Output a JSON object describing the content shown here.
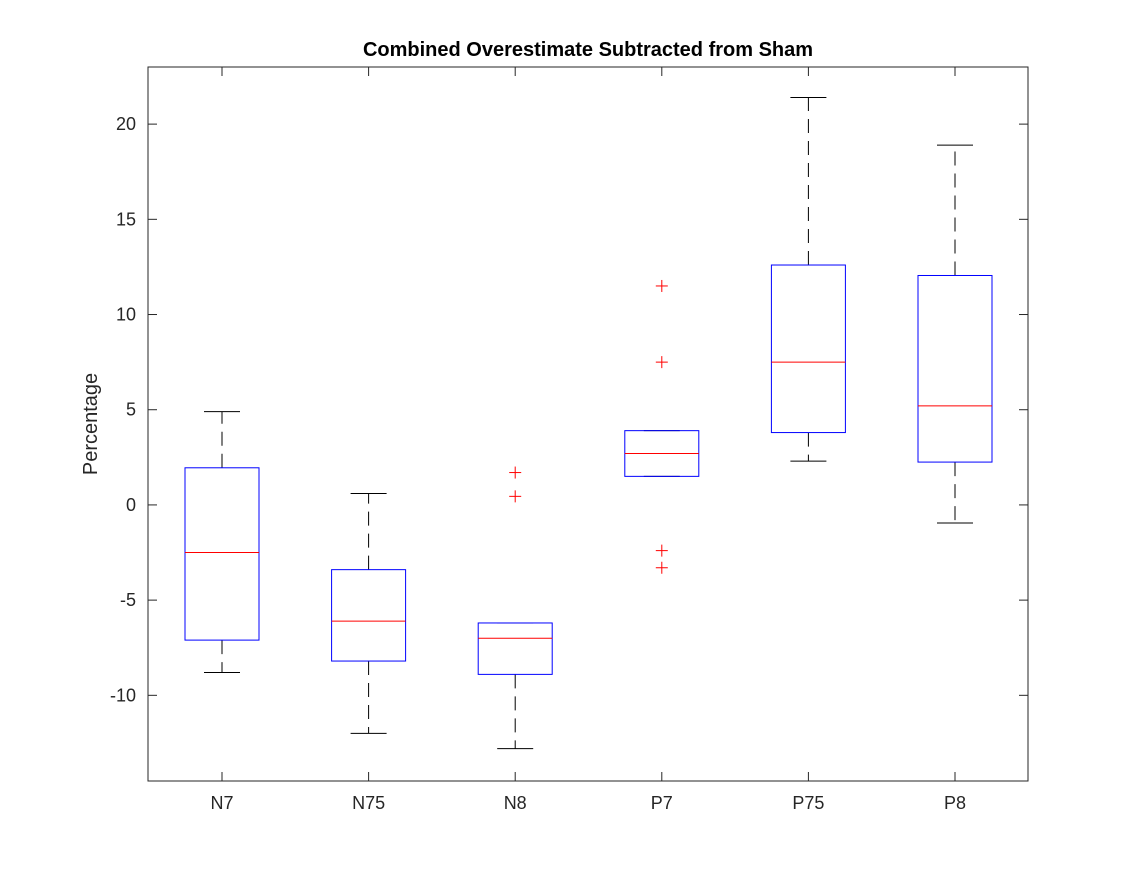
{
  "chart_data": {
    "type": "box",
    "title": "Combined Overestimate Subtracted from Sham",
    "xlabel": "",
    "ylabel": "Percentage",
    "ylim": [
      -14.5,
      23
    ],
    "yticks": [
      -10,
      -5,
      0,
      5,
      10,
      15,
      20
    ],
    "ytick_labels": [
      "-10",
      "-5",
      "0",
      "5",
      "10",
      "15",
      "20"
    ],
    "categories": [
      "N7",
      "N75",
      "N8",
      "P7",
      "P75",
      "P8"
    ],
    "boxes": [
      {
        "label": "N7",
        "whisker_low": -8.8,
        "q1": -7.1,
        "median": -2.5,
        "q3": 1.95,
        "whisker_high": 4.9,
        "outliers": []
      },
      {
        "label": "N75",
        "whisker_low": -12.0,
        "q1": -8.2,
        "median": -6.1,
        "q3": -3.4,
        "whisker_high": 0.6,
        "outliers": []
      },
      {
        "label": "N8",
        "whisker_low": -12.8,
        "q1": -8.9,
        "median": -7.0,
        "q3": -6.2,
        "whisker_high": -6.2,
        "outliers": [
          0.45,
          1.7
        ]
      },
      {
        "label": "P7",
        "whisker_low": 1.5,
        "q1": 1.5,
        "median": 2.7,
        "q3": 3.9,
        "whisker_high": 3.9,
        "outliers": [
          -3.3,
          -2.4,
          7.5,
          11.5
        ]
      },
      {
        "label": "P75",
        "whisker_low": 2.3,
        "q1": 3.8,
        "median": 7.5,
        "q3": 12.6,
        "whisker_high": 21.4,
        "outliers": []
      },
      {
        "label": "P8",
        "whisker_low": -0.95,
        "q1": 2.25,
        "median": 5.2,
        "q3": 12.05,
        "whisker_high": 18.9,
        "outliers": []
      }
    ],
    "grid": false,
    "colors": {
      "box": "#0000ff",
      "median": "#ff0000",
      "whisker": "#000000",
      "outlier": "#ff0000",
      "axis": "#262626"
    }
  }
}
